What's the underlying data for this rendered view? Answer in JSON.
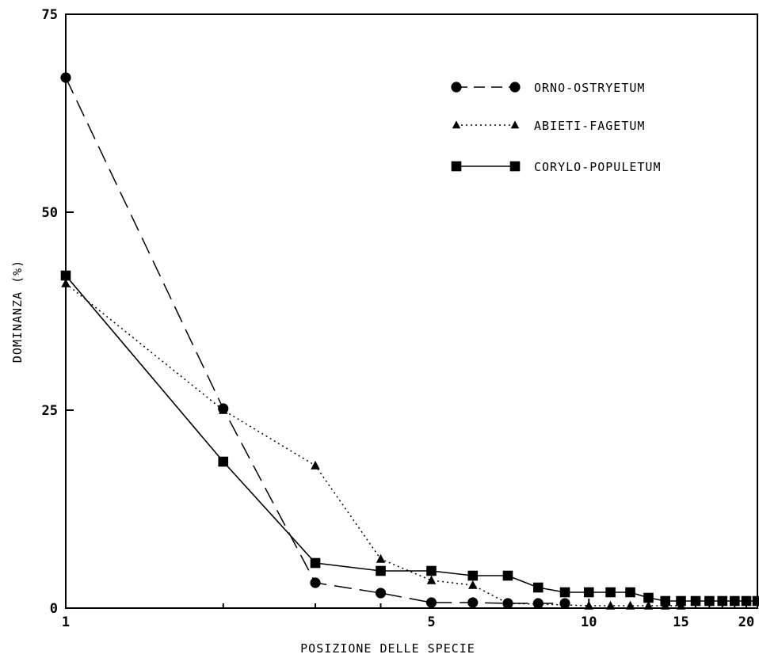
{
  "chart_data": {
    "type": "line",
    "xlabel": "POSIZIONE DELLE SPECIE",
    "ylabel": "DOMINANZA (%)",
    "ylim": [
      0,
      75
    ],
    "xlim": [
      1,
      21
    ],
    "x_scale": "log",
    "grid": false,
    "legend_position": "top-right",
    "x_ticks": [
      1,
      5,
      10,
      15,
      20
    ],
    "y_ticks": [
      0,
      25,
      50,
      75
    ],
    "series": [
      {
        "name": "ORNO-OSTRYETUM",
        "marker": "circle",
        "line_style": "dashed",
        "x": [
          1,
          2,
          3,
          4,
          5,
          6,
          7,
          8,
          9
        ],
        "y": [
          67,
          25.2,
          3.2,
          1.9,
          0.7,
          0.7,
          0.6,
          0.6,
          0.6
        ]
      },
      {
        "name": "ABIETI-FAGETUM",
        "marker": "triangle",
        "line_style": "dotted",
        "x": [
          1,
          2,
          3,
          4,
          5,
          6,
          7,
          8,
          9,
          10,
          11,
          12,
          13,
          14,
          15
        ],
        "y": [
          41,
          25,
          18,
          6.2,
          3.5,
          2.9,
          0.6,
          0.5,
          0.4,
          0.3,
          0.3,
          0.3,
          0.3,
          0.3,
          0.3
        ]
      },
      {
        "name": "CORYLO-POPULETUM",
        "marker": "square",
        "line_style": "solid",
        "x": [
          1,
          2,
          3,
          4,
          5,
          6,
          7,
          8,
          9,
          10,
          11,
          12,
          13,
          14,
          15,
          16,
          17,
          18,
          19,
          20,
          21
        ],
        "y": [
          42,
          18.5,
          5.7,
          4.7,
          4.7,
          4.1,
          4.1,
          2.6,
          2.0,
          2.0,
          2.0,
          2.0,
          1.3,
          0.9,
          0.9,
          0.9,
          0.9,
          0.9,
          0.9,
          0.9,
          0.9
        ]
      }
    ]
  }
}
